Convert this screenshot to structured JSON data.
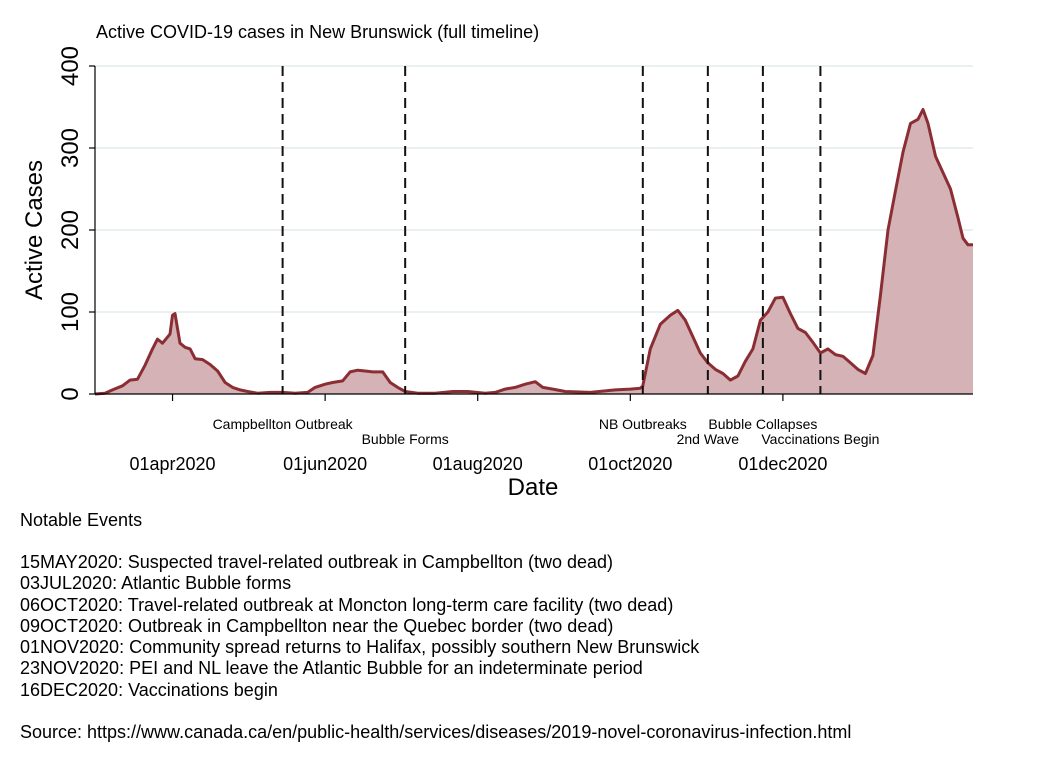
{
  "chart_data": {
    "type": "area",
    "title": "Active COVID-19 cases in New Brunswick (full timeline)",
    "xlabel": "Date",
    "ylabel": "Active Cases",
    "ylim": [
      0,
      400
    ],
    "yticks": [
      0,
      100,
      200,
      300,
      400
    ],
    "x_start": "2020-03-01",
    "x_end": "2021-02-15",
    "xticks": [
      {
        "date": "2020-04-01",
        "label": "01apr2020"
      },
      {
        "date": "2020-06-01",
        "label": "01jun2020"
      },
      {
        "date": "2020-08-01",
        "label": "01aug2020"
      },
      {
        "date": "2020-10-01",
        "label": "01oct2020"
      },
      {
        "date": "2020-12-01",
        "label": "01dec2020"
      }
    ],
    "grid": true,
    "colors": {
      "line": "#8b2e34",
      "fill": "#d4b2b6",
      "grid": "#e3ecea"
    },
    "events": [
      {
        "date": "2020-05-15",
        "label": "Campbellton Outbreak",
        "row": 1
      },
      {
        "date": "2020-07-03",
        "label": "Bubble Forms",
        "row": 2
      },
      {
        "date": "2020-10-06",
        "label": "NB Outbreaks",
        "row": 1
      },
      {
        "date": "2020-11-01",
        "label": "2nd Wave",
        "row": 2
      },
      {
        "date": "2020-11-23",
        "label": "Bubble Collapses",
        "row": 1
      },
      {
        "date": "2020-12-16",
        "label": "Vaccinations Begin",
        "row": 2
      }
    ],
    "series": [
      {
        "name": "Active Cases",
        "points": [
          [
            "2020-03-01",
            0
          ],
          [
            "2020-03-05",
            1
          ],
          [
            "2020-03-08",
            5
          ],
          [
            "2020-03-12",
            10
          ],
          [
            "2020-03-15",
            17
          ],
          [
            "2020-03-18",
            18
          ],
          [
            "2020-03-21",
            35
          ],
          [
            "2020-03-24",
            55
          ],
          [
            "2020-03-26",
            67
          ],
          [
            "2020-03-28",
            62
          ],
          [
            "2020-03-31",
            73
          ],
          [
            "2020-04-01",
            96
          ],
          [
            "2020-04-02",
            98
          ],
          [
            "2020-04-04",
            62
          ],
          [
            "2020-04-06",
            57
          ],
          [
            "2020-04-08",
            55
          ],
          [
            "2020-04-10",
            43
          ],
          [
            "2020-04-13",
            42
          ],
          [
            "2020-04-16",
            36
          ],
          [
            "2020-04-19",
            28
          ],
          [
            "2020-04-22",
            14
          ],
          [
            "2020-04-25",
            8
          ],
          [
            "2020-04-28",
            5
          ],
          [
            "2020-05-01",
            3
          ],
          [
            "2020-05-05",
            1
          ],
          [
            "2020-05-10",
            2
          ],
          [
            "2020-05-15",
            2
          ],
          [
            "2020-05-20",
            1
          ],
          [
            "2020-05-25",
            2
          ],
          [
            "2020-05-28",
            8
          ],
          [
            "2020-06-01",
            12
          ],
          [
            "2020-06-04",
            14
          ],
          [
            "2020-06-08",
            16
          ],
          [
            "2020-06-11",
            27
          ],
          [
            "2020-06-14",
            29
          ],
          [
            "2020-06-17",
            28
          ],
          [
            "2020-06-20",
            27
          ],
          [
            "2020-06-24",
            27
          ],
          [
            "2020-06-27",
            14
          ],
          [
            "2020-06-30",
            8
          ],
          [
            "2020-07-03",
            3
          ],
          [
            "2020-07-08",
            1
          ],
          [
            "2020-07-15",
            1
          ],
          [
            "2020-07-22",
            3
          ],
          [
            "2020-07-28",
            3
          ],
          [
            "2020-08-04",
            1
          ],
          [
            "2020-08-08",
            2
          ],
          [
            "2020-08-12",
            6
          ],
          [
            "2020-08-16",
            8
          ],
          [
            "2020-08-20",
            12
          ],
          [
            "2020-08-24",
            15
          ],
          [
            "2020-08-27",
            8
          ],
          [
            "2020-08-31",
            6
          ],
          [
            "2020-09-05",
            3
          ],
          [
            "2020-09-15",
            2
          ],
          [
            "2020-09-25",
            5
          ],
          [
            "2020-10-01",
            6
          ],
          [
            "2020-10-05",
            7
          ],
          [
            "2020-10-06",
            10
          ],
          [
            "2020-10-09",
            55
          ],
          [
            "2020-10-13",
            85
          ],
          [
            "2020-10-17",
            96
          ],
          [
            "2020-10-20",
            102
          ],
          [
            "2020-10-23",
            90
          ],
          [
            "2020-10-26",
            70
          ],
          [
            "2020-10-29",
            50
          ],
          [
            "2020-11-01",
            38
          ],
          [
            "2020-11-04",
            30
          ],
          [
            "2020-11-07",
            25
          ],
          [
            "2020-11-10",
            17
          ],
          [
            "2020-11-13",
            22
          ],
          [
            "2020-11-16",
            40
          ],
          [
            "2020-11-19",
            55
          ],
          [
            "2020-11-22",
            90
          ],
          [
            "2020-11-25",
            100
          ],
          [
            "2020-11-28",
            117
          ],
          [
            "2020-12-01",
            118
          ],
          [
            "2020-12-04",
            98
          ],
          [
            "2020-12-07",
            80
          ],
          [
            "2020-12-10",
            75
          ],
          [
            "2020-12-13",
            63
          ],
          [
            "2020-12-16",
            50
          ],
          [
            "2020-12-19",
            55
          ],
          [
            "2020-12-22",
            48
          ],
          [
            "2020-12-25",
            46
          ],
          [
            "2020-12-28",
            38
          ],
          [
            "2020-12-31",
            30
          ],
          [
            "2021-01-03",
            25
          ],
          [
            "2021-01-06",
            47
          ],
          [
            "2021-01-09",
            120
          ],
          [
            "2021-01-12",
            200
          ],
          [
            "2021-01-15",
            248
          ],
          [
            "2021-01-18",
            295
          ],
          [
            "2021-01-21",
            330
          ],
          [
            "2021-01-24",
            335
          ],
          [
            "2021-01-26",
            347
          ],
          [
            "2021-01-28",
            330
          ],
          [
            "2021-01-31",
            290
          ],
          [
            "2021-02-03",
            270
          ],
          [
            "2021-02-06",
            250
          ],
          [
            "2021-02-09",
            215
          ],
          [
            "2021-02-11",
            190
          ],
          [
            "2021-02-13",
            182
          ],
          [
            "2021-02-15",
            182
          ]
        ]
      }
    ]
  },
  "notes": {
    "title": "Notable Events",
    "items": [
      "15MAY2020: Suspected travel-related outbreak in Campbellton (two dead)",
      "03JUL2020: Atlantic Bubble forms",
      "06OCT2020: Travel-related outbreak at Moncton long-term care facility (two dead)",
      "09OCT2020: Outbreak in Campbellton near the Quebec border (two dead)",
      "01NOV2020: Community spread returns to Halifax, possibly southern New Brunswick",
      "23NOV2020: PEI and NL leave the Atlantic Bubble for an indeterminate period",
      "16DEC2020: Vaccinations begin"
    ],
    "source": "Source: https://www.canada.ca/en/public-health/services/diseases/2019-novel-coronavirus-infection.html"
  }
}
